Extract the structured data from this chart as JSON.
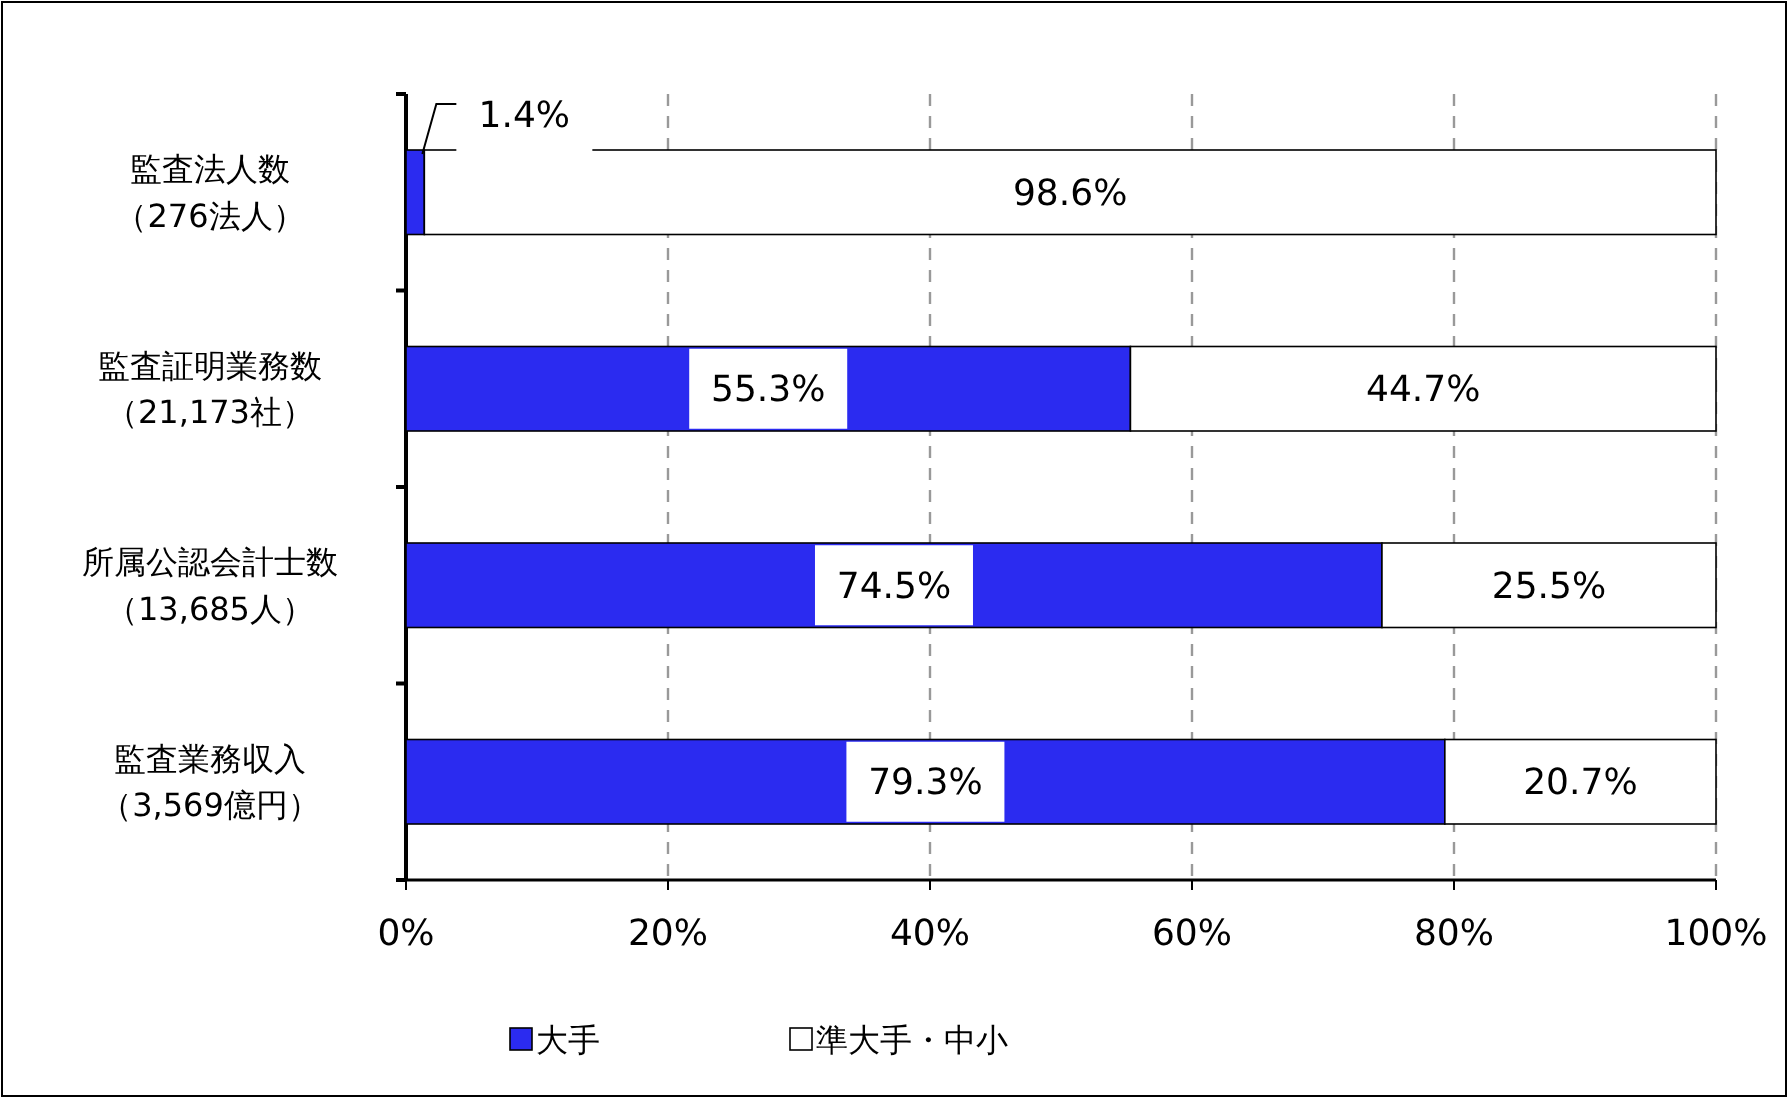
{
  "chart_data": {
    "type": "bar",
    "orientation": "horizontal",
    "stacked": true,
    "categories": [
      "監査法人数（276法人）",
      "監査証明業務数（21,173社）",
      "所属公認会計士数（13,685人）",
      "監査業務収入（3,569億円）"
    ],
    "series": [
      {
        "name": "大手",
        "color": "#2b2bf0",
        "values": [
          1.4,
          55.3,
          74.5,
          79.3
        ],
        "value_labels": [
          "1.4%",
          "55.3%",
          "74.5%",
          "79.3%"
        ]
      },
      {
        "name": "準大手・中小",
        "color": "#ffffff",
        "values": [
          98.6,
          44.7,
          25.5,
          20.7
        ],
        "value_labels": [
          "98.6%",
          "44.7%",
          "25.5%",
          "20.7%"
        ]
      }
    ],
    "xlim": [
      0,
      100
    ],
    "xticks": [
      {
        "value": 0,
        "label": "0%"
      },
      {
        "value": 20,
        "label": "20%"
      },
      {
        "value": 40,
        "label": "40%"
      },
      {
        "value": 60,
        "label": "60%"
      },
      {
        "value": 80,
        "label": "80%"
      },
      {
        "value": 100,
        "label": "100%"
      }
    ],
    "grid": "x",
    "legend": "bottom"
  }
}
